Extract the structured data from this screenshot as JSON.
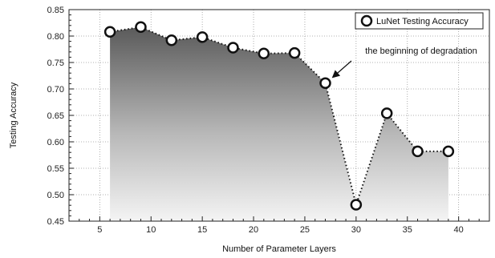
{
  "chart_data": {
    "type": "line",
    "xlabel": "Number of Parameter Layers",
    "ylabel": "Testing Accuracy",
    "xlim": [
      2,
      43
    ],
    "ylim": [
      0.45,
      0.85
    ],
    "xticks": [
      5,
      10,
      15,
      20,
      25,
      30,
      35,
      40
    ],
    "yticks": [
      0.45,
      0.5,
      0.55,
      0.6,
      0.65,
      0.7,
      0.75,
      0.8,
      0.85
    ],
    "grid": true,
    "legend_position": "top-right",
    "series": [
      {
        "name": "LuNet Testing Accuracy",
        "x": [
          6,
          9,
          12,
          15,
          18,
          21,
          24,
          27,
          30,
          33,
          36,
          39
        ],
        "y": [
          0.808,
          0.817,
          0.792,
          0.798,
          0.778,
          0.767,
          0.768,
          0.711,
          0.481,
          0.654,
          0.582,
          0.582
        ]
      }
    ],
    "annotations": [
      {
        "text": "the beginning of degradation",
        "x": 27,
        "y": 0.711
      }
    ]
  }
}
